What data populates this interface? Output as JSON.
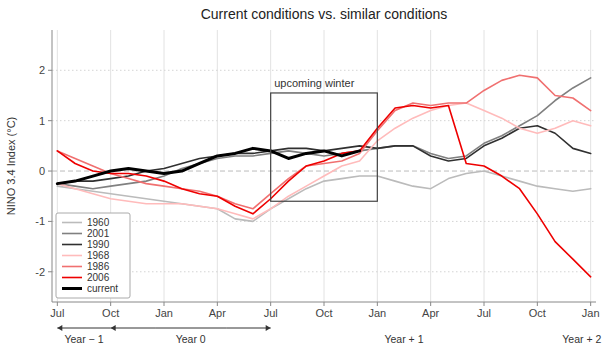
{
  "chart_data": {
    "type": "line",
    "title": "Current conditions vs. similar conditions",
    "y_label": "NINO 3.4 Index (°C)",
    "categories": [
      "Jul",
      null,
      null,
      "Oct",
      null,
      null,
      "Jan",
      null,
      null,
      "Apr",
      null,
      null,
      "Jul",
      null,
      null,
      "Oct",
      null,
      null,
      "Jan",
      null,
      null,
      "Apr",
      null,
      null,
      "Jul",
      null,
      null,
      "Oct",
      null,
      null,
      "Jan"
    ],
    "ylim": [
      -2.6,
      2.8
    ],
    "yticks": [
      -2,
      -1,
      0,
      1,
      2
    ],
    "grid": true,
    "legend": "lower left",
    "series": [
      {
        "name": "1960",
        "color": "#bbbbbb",
        "values": [
          -0.3,
          -0.35,
          -0.4,
          -0.45,
          -0.5,
          -0.55,
          -0.6,
          -0.65,
          -0.7,
          -0.75,
          -0.95,
          -1.0,
          -0.75,
          -0.55,
          -0.35,
          -0.2,
          -0.15,
          -0.1,
          -0.1,
          -0.2,
          -0.3,
          -0.35,
          -0.15,
          -0.05,
          0.0,
          -0.1,
          -0.2,
          -0.3,
          -0.35,
          -0.4,
          -0.35
        ]
      },
      {
        "name": "2001",
        "color": "#808080",
        "values": [
          -0.25,
          -0.3,
          -0.35,
          -0.3,
          -0.25,
          -0.2,
          -0.1,
          0.05,
          0.15,
          0.25,
          0.3,
          0.3,
          0.35,
          0.4,
          0.35,
          0.3,
          0.35,
          0.4,
          0.45,
          0.5,
          0.5,
          0.35,
          0.25,
          0.3,
          0.55,
          0.7,
          0.9,
          1.1,
          1.4,
          1.65,
          1.85
        ]
      },
      {
        "name": "1990",
        "color": "#303030",
        "values": [
          -0.25,
          -0.2,
          -0.2,
          -0.15,
          -0.1,
          0.0,
          0.05,
          0.15,
          0.25,
          0.3,
          0.35,
          0.35,
          0.4,
          0.45,
          0.45,
          0.4,
          0.45,
          0.5,
          0.45,
          0.5,
          0.5,
          0.3,
          0.2,
          0.25,
          0.5,
          0.65,
          0.85,
          0.9,
          0.75,
          0.45,
          0.35
        ]
      },
      {
        "name": "1968",
        "color": "#ffbbbb",
        "values": [
          -0.25,
          -0.35,
          -0.45,
          -0.55,
          -0.6,
          -0.65,
          -0.65,
          -0.65,
          -0.7,
          -0.75,
          -0.85,
          -0.95,
          -0.75,
          -0.5,
          -0.3,
          -0.1,
          0.1,
          0.2,
          0.6,
          0.85,
          1.05,
          1.2,
          1.3,
          1.35,
          1.2,
          1.05,
          0.85,
          0.75,
          0.85,
          1.0,
          0.9
        ]
      },
      {
        "name": "1986",
        "color": "#f07070",
        "values": [
          0.4,
          0.25,
          0.1,
          -0.05,
          -0.15,
          -0.25,
          -0.3,
          -0.35,
          -0.4,
          -0.5,
          -0.65,
          -0.75,
          -0.45,
          -0.15,
          0.1,
          0.15,
          0.2,
          0.35,
          0.8,
          1.2,
          1.35,
          1.3,
          1.35,
          1.35,
          1.6,
          1.8,
          1.9,
          1.85,
          1.5,
          1.45,
          1.2
        ]
      },
      {
        "name": "2006",
        "color": "#ee0000",
        "values": [
          0.4,
          0.15,
          0.0,
          -0.05,
          -0.05,
          -0.1,
          -0.2,
          -0.35,
          -0.45,
          -0.5,
          -0.7,
          -0.85,
          -0.55,
          -0.2,
          0.1,
          0.2,
          0.35,
          0.4,
          0.85,
          1.25,
          1.3,
          1.25,
          1.3,
          0.15,
          0.1,
          -0.1,
          -0.35,
          -0.85,
          -1.4,
          -1.75,
          -2.1
        ]
      },
      {
        "name": "current",
        "color": "#000000",
        "values": [
          -0.25,
          -0.2,
          -0.1,
          0.0,
          0.05,
          0.0,
          -0.05,
          0.0,
          0.15,
          0.3,
          0.35,
          0.45,
          0.4,
          0.25,
          0.35,
          0.4,
          0.3,
          0.4,
          null,
          null,
          null,
          null,
          null,
          null,
          null,
          null,
          null,
          null,
          null,
          null,
          null
        ]
      }
    ],
    "annotations": [
      {
        "type": "box",
        "x0": 12,
        "x1": 18,
        "y0": -0.6,
        "y1": 1.55
      },
      {
        "type": "text",
        "text": "upcoming winter",
        "x": 12.2,
        "y": 1.6
      },
      {
        "type": "period",
        "text": "Year − 1",
        "x": 1.5,
        "arrows": [
          [
            3,
            0
          ]
        ]
      },
      {
        "type": "period",
        "text": "Year 0",
        "x": 7.5,
        "arrows": [
          [
            5.5,
            3
          ],
          [
            9.5,
            12
          ]
        ]
      },
      {
        "type": "period",
        "text": "Year + 1",
        "x": 19.5
      },
      {
        "type": "period",
        "text": "Year + 2",
        "x": 29.5
      }
    ]
  }
}
